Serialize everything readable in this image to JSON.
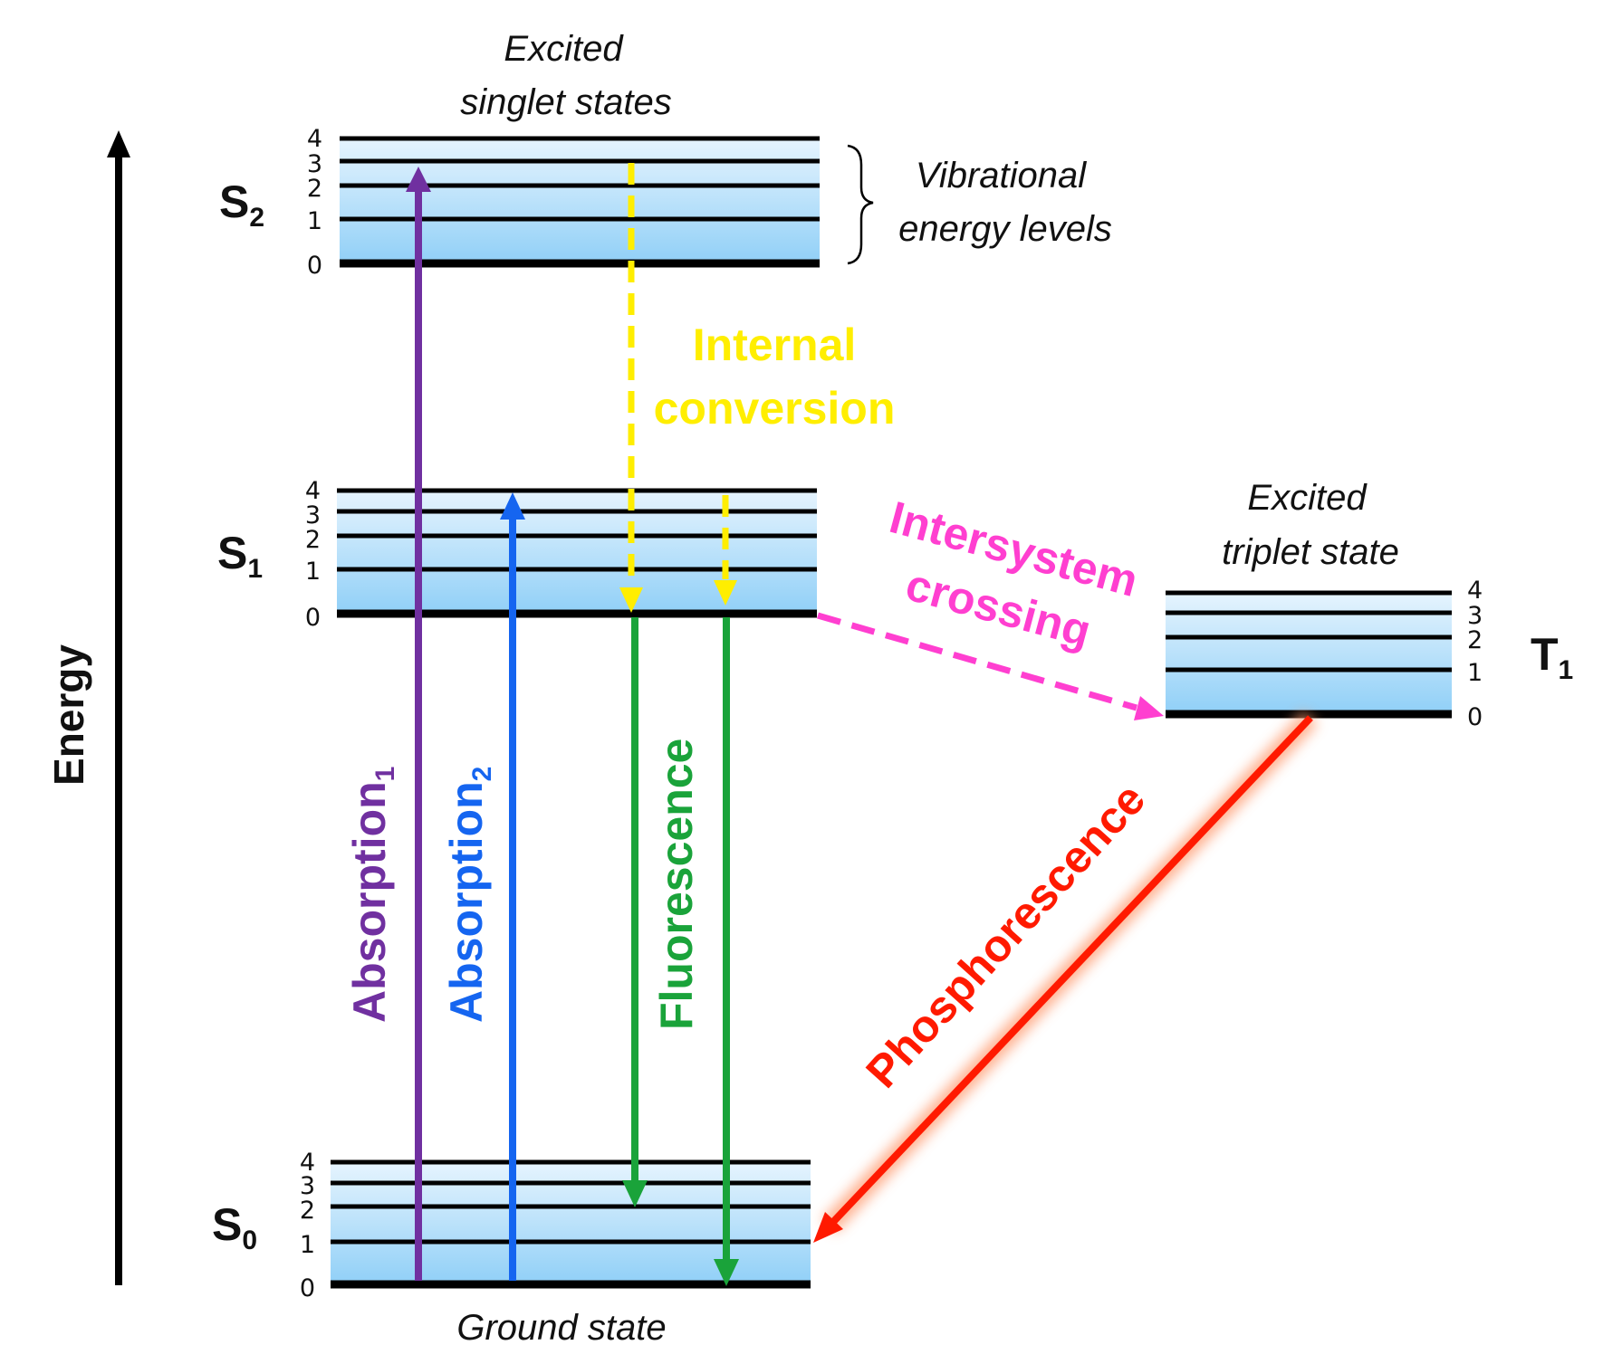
{
  "axis": {
    "label": "Energy"
  },
  "levels": [
    "0",
    "1",
    "2",
    "3",
    "4"
  ],
  "states": {
    "s2": {
      "symbol": "S",
      "sub": "2",
      "caption_line1": "Excited",
      "caption_line2": "singlet states"
    },
    "s1": {
      "symbol": "S",
      "sub": "1"
    },
    "s0": {
      "symbol": "S",
      "sub": "0",
      "caption": "Ground state"
    },
    "t1": {
      "symbol": "T",
      "sub": "1",
      "caption_line1": "Excited",
      "caption_line2": "triplet state"
    }
  },
  "vibrational": {
    "line1": "Vibrational",
    "line2": "energy levels"
  },
  "processes": {
    "absorption1": {
      "text": "Absorption",
      "sub": "1",
      "color": "#7030a0"
    },
    "absorption2": {
      "text": "Absorption",
      "sub": "2",
      "color": "#1565f0"
    },
    "fluorescence": {
      "text": "Fluorescence",
      "color": "#1aa33a"
    },
    "internal_conversion": {
      "line1": "Internal",
      "line2": "conversion",
      "color": "#ffee00"
    },
    "intersystem_crossing": {
      "line1": "Intersystem",
      "line2": "crossing",
      "color": "#ff3fd0"
    },
    "phosphorescence": {
      "text": "Phosphorescence",
      "color": "#ff1a00"
    }
  }
}
